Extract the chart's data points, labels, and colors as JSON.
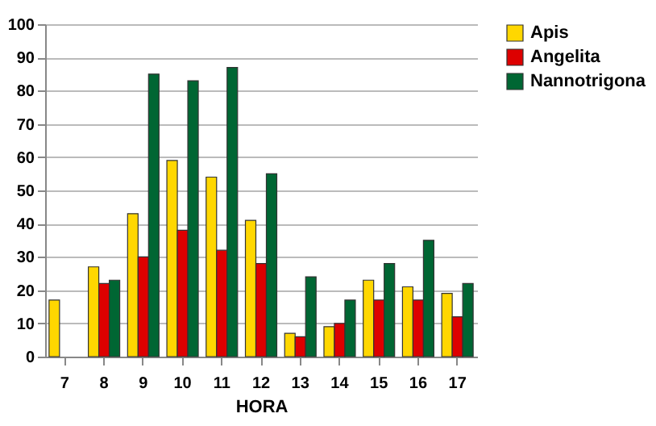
{
  "chart_data": {
    "type": "bar",
    "xlabel": "HORA",
    "categories": [
      "7",
      "8",
      "9",
      "10",
      "11",
      "12",
      "13",
      "14",
      "15",
      "16",
      "17"
    ],
    "series": [
      {
        "name": "Apis",
        "color": "#ffd700",
        "values": [
          17,
          27,
          43,
          59,
          54,
          41,
          7,
          9,
          23,
          21,
          19
        ]
      },
      {
        "name": "Angelita",
        "color": "#dd0000",
        "values": [
          null,
          22,
          30,
          38,
          32,
          28,
          6,
          10,
          17,
          17,
          12
        ]
      },
      {
        "name": "Nannotrigona",
        "color": "#006633",
        "values": [
          null,
          23,
          85,
          83,
          87,
          55,
          24,
          17,
          28,
          35,
          22
        ]
      }
    ],
    "ylim": [
      0,
      100
    ],
    "yticks": [
      0,
      10,
      20,
      30,
      40,
      50,
      60,
      70,
      80,
      90,
      100
    ],
    "grid": "y",
    "legend": "right"
  }
}
